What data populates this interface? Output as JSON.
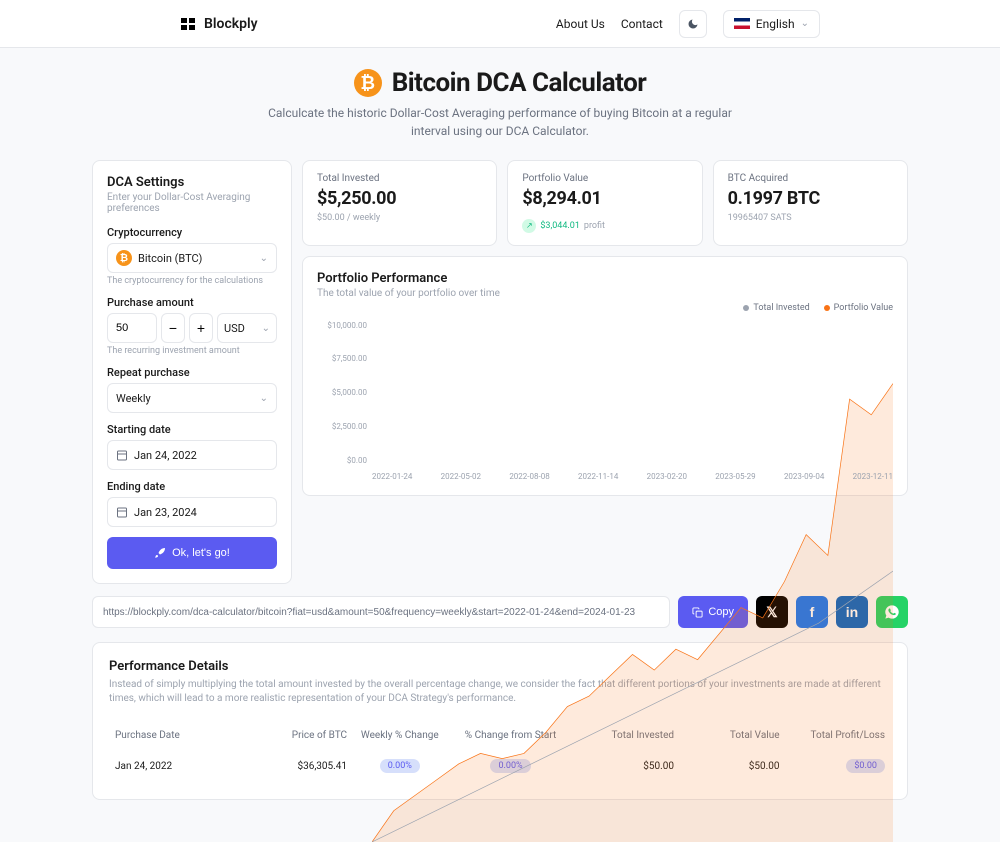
{
  "header": {
    "brand": "Blockply",
    "about": "About Us",
    "contact": "Contact",
    "language": "English"
  },
  "title": "Bitcoin DCA Calculator",
  "subtitle": "Calculcate the historic Dollar-Cost Averaging performance of buying Bitcoin at a regular interval using our DCA Calculator.",
  "settings": {
    "title": "DCA Settings",
    "subtitle": "Enter your Dollar-Cost Averaging preferences",
    "crypto_label": "Cryptocurrency",
    "crypto_value": "Bitcoin (BTC)",
    "crypto_help": "The cryptocurrency for the calculations",
    "amount_label": "Purchase amount",
    "amount_value": "50",
    "currency": "USD",
    "amount_help": "The recurring investment amount",
    "repeat_label": "Repeat purchase",
    "repeat_value": "Weekly",
    "start_label": "Starting date",
    "start_value": "Jan 24, 2022",
    "end_label": "Ending date",
    "end_value": "Jan 23, 2024",
    "go_button": "Ok, let's go!"
  },
  "stats": {
    "invested_label": "Total Invested",
    "invested_value": "$5,250.00",
    "invested_sub": "$50.00 / weekly",
    "portfolio_label": "Portfolio Value",
    "portfolio_value": "$8,294.01",
    "profit_value": "$3,044.01",
    "profit_label": "profit",
    "acquired_label": "BTC Acquired",
    "acquired_value": "0.1997 BTC",
    "acquired_sub": "19965407 SATS"
  },
  "chart": {
    "title": "Portfolio Performance",
    "subtitle": "The total value of your portfolio over time",
    "legend_invested": "Total Invested",
    "legend_portfolio": "Portfolio Value",
    "invested_color": "#9ca3af",
    "portfolio_color": "#f97316",
    "y_labels": [
      "$10,000.00",
      "$7,500.00",
      "$5,000.00",
      "$2,500.00",
      "$0.00"
    ],
    "x_labels": [
      "2022-01-24",
      "2022-05-02",
      "2022-08-08",
      "2022-11-14",
      "2023-02-20",
      "2023-05-29",
      "2023-09-04",
      "2023-12-11"
    ],
    "y_max": 10000,
    "invested_series": [
      0,
      700,
      1400,
      2100,
      2800,
      3500,
      4200,
      5200
    ],
    "portfolio_series": [
      0,
      600,
      900,
      1200,
      1500,
      1700,
      1600,
      1700,
      2100,
      2600,
      2800,
      3200,
      3600,
      3300,
      3700,
      3500,
      4000,
      4500,
      4300,
      5000,
      5900,
      5500,
      8500,
      8200,
      8800
    ]
  },
  "share": {
    "url": "https://blockply.com/dca-calculator/bitcoin?fiat=usd&amount=50&frequency=weekly&start=2022-01-24&end=2024-01-23",
    "copy": "Copy",
    "colors": {
      "x": "#000000",
      "fb": "#1877f2",
      "li": "#0a66c2",
      "wa": "#25d366"
    }
  },
  "details": {
    "title": "Performance Details",
    "desc": "Instead of simply multiplying the total amount invested by the overall percentage change, we consider the fact that different portions of your investments are made at different times, which will lead to a more realistic representation of your DCA Strategy's performance.",
    "columns": [
      "Purchase Date",
      "Price of BTC",
      "Weekly % Change",
      "% Change from Start",
      "Total Invested",
      "Total Value",
      "Total Profit/Loss"
    ],
    "row": {
      "date": "Jan 24, 2022",
      "price": "$36,305.41",
      "weekly": "0.00%",
      "from_start": "0.00%",
      "invested": "$50.00",
      "value": "$50.00",
      "profit": "$0.00"
    },
    "badge_bg": "#d6dffb",
    "badge_color": "#5b5bf1"
  }
}
